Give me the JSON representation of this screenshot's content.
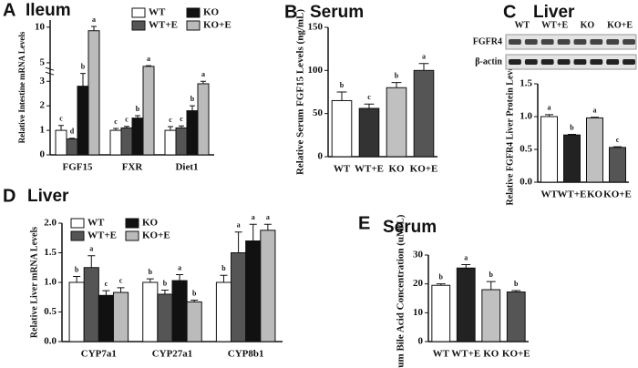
{
  "chart_data": [
    {
      "type": "bar",
      "panel": "A",
      "title": "Ileum",
      "ylabel": "Relative Intestine mRNA Levels",
      "categories": [
        "FGF15",
        "FXR",
        "Diet1"
      ],
      "series": [
        {
          "name": "WT",
          "color": "#ffffff",
          "values": [
            1.0,
            1.0,
            1.0
          ],
          "errors": [
            0.2,
            0.08,
            0.15
          ],
          "letters": [
            "c",
            "c",
            "c"
          ]
        },
        {
          "name": "WT+E",
          "color": "#555555",
          "values": [
            0.65,
            1.1,
            1.1
          ],
          "errors": [
            0.03,
            0.06,
            0.08
          ],
          "letters": [
            "d",
            "c",
            "c"
          ]
        },
        {
          "name": "KO",
          "color": "#111111",
          "values": [
            2.8,
            1.5,
            1.8
          ],
          "errors": [
            0.7,
            0.1,
            0.2
          ],
          "letters": [
            "b",
            "b",
            "b"
          ]
        },
        {
          "name": "KO+E",
          "color": "#bbbbbb",
          "values": [
            9.5,
            4.5,
            2.9
          ],
          "errors": [
            0.6,
            0.1,
            0.1
          ],
          "letters": [
            "a",
            "a",
            "a"
          ]
        }
      ],
      "ylim": [
        0,
        11
      ],
      "y_break": [
        3.3,
        4.2
      ],
      "yticks": [
        0,
        1,
        2,
        3,
        5,
        10
      ]
    },
    {
      "type": "bar",
      "panel": "B",
      "title": "Serum",
      "ylabel": "Relative Serum FGF15 Levels (ng/mL)",
      "categories": [
        "WT",
        "WT+E",
        "KO",
        "KO+E"
      ],
      "values": [
        65,
        56,
        80,
        100
      ],
      "errors": [
        10,
        5,
        6,
        8
      ],
      "letters": [
        "b",
        "c",
        "b",
        "a"
      ],
      "colors": [
        "#ffffff",
        "#333333",
        "#c0c0c0",
        "#555555"
      ],
      "ylim": [
        0,
        150
      ],
      "yticks": [
        0,
        50,
        100,
        150
      ]
    },
    {
      "type": "bar",
      "panel": "C",
      "title": "Liver",
      "ylabel": "Relative FGFR4 Liver Protein Levels",
      "blot_rows": [
        "FGFR4",
        "β-actin"
      ],
      "categories": [
        "WT",
        "WT+E",
        "KO",
        "KO+E"
      ],
      "values": [
        1.0,
        0.72,
        0.98,
        0.53
      ],
      "errors": [
        0.03,
        0.01,
        0.01,
        0.01
      ],
      "letters": [
        "a",
        "b",
        "a",
        "c"
      ],
      "colors": [
        "#ffffff",
        "#222222",
        "#c0c0c0",
        "#555555"
      ],
      "ylim": [
        0,
        1.5
      ],
      "yticks": [
        {
          "value": 0,
          "label": "0.0"
        },
        0.5,
        {
          "value": 1,
          "label": "1.0"
        },
        1.5
      ]
    },
    {
      "type": "bar",
      "panel": "D",
      "title": "Liver",
      "ylabel": "Relative Liver mRNA Levels",
      "categories": [
        "CYP7a1",
        "CYP27a1",
        "CYP8b1"
      ],
      "series": [
        {
          "name": "WT",
          "color": "#ffffff",
          "values": [
            1.0,
            1.0,
            1.0
          ],
          "errors": [
            0.1,
            0.06,
            0.12
          ],
          "letters": [
            "b",
            "b",
            "b"
          ]
        },
        {
          "name": "WT+E",
          "color": "#555555",
          "values": [
            1.25,
            0.8,
            1.5
          ],
          "errors": [
            0.2,
            0.07,
            0.35
          ],
          "letters": [
            "a",
            "b",
            "a"
          ]
        },
        {
          "name": "KO",
          "color": "#111111",
          "values": [
            0.78,
            1.03,
            1.7
          ],
          "errors": [
            0.08,
            0.1,
            0.28
          ],
          "letters": [
            "c",
            "a",
            "a"
          ]
        },
        {
          "name": "KO+E",
          "color": "#bbbbbb",
          "values": [
            0.83,
            0.67,
            1.88
          ],
          "errors": [
            0.08,
            0.03,
            0.1
          ],
          "letters": [
            "c",
            "b",
            "a"
          ]
        }
      ],
      "ylim": [
        0,
        2
      ],
      "yticks": [
        {
          "value": 0,
          "label": "0.0"
        },
        0.5,
        {
          "value": 1,
          "label": "1.0"
        },
        1.5,
        {
          "value": 2,
          "label": "2.0"
        }
      ]
    },
    {
      "type": "bar",
      "panel": "E",
      "title": "Serum",
      "ylabel": "Serum Bile Acid Concentration (uM/L)",
      "categories": [
        "WT",
        "WT+E",
        "KO",
        "KO+E"
      ],
      "values": [
        19.5,
        25.5,
        18,
        17.2
      ],
      "errors": [
        0.5,
        1.2,
        2.8,
        0.5
      ],
      "letters": [
        "b",
        "a",
        "b",
        "b"
      ],
      "colors": [
        "#ffffff",
        "#222222",
        "#c0c0c0",
        "#555555"
      ],
      "ylim": [
        0,
        30
      ],
      "yticks": [
        0,
        10,
        20,
        30
      ]
    }
  ]
}
